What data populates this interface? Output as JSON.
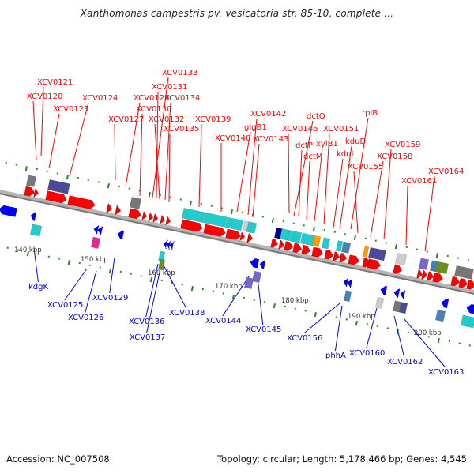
{
  "title": "Xanthomonas campestris pv. vesicatoria str. 85-10, complete ...",
  "footer": {
    "accession": "Accession: NC_007508",
    "summary": "Topology: circular; Length: 5,178,466 bp; Genes: 4,545"
  },
  "colors": {
    "forward_gene": "#ff0000",
    "reverse_gene": "#0000ff",
    "forward_label": "#ff0000",
    "reverse_label": "#0000ee",
    "backbone": "#8c8c8c",
    "tick": "#228b22",
    "cog_cyan": "#22cccc",
    "cog_gray": "#777777",
    "cog_slate": "#4a4a99",
    "cog_magenta": "#ee2299",
    "cog_olive": "#6b8e23",
    "cog_orange": "#ff9900",
    "cog_steel": "#4682b4",
    "cog_lightgray": "#cccccc",
    "cog_purple": "#7766cc",
    "cog_navy": "#000080"
  },
  "scale": {
    "tick_labels": [
      "140 kbp",
      "150 kbp",
      "160 kbp",
      "170 kbp",
      "180 kbp",
      "190 kbp",
      "200 kbp"
    ]
  },
  "forward_genes": [
    {
      "label": "XCV0121"
    },
    {
      "label": "XCV0120"
    },
    {
      "label": "XCV0123"
    },
    {
      "label": "XCV0124"
    },
    {
      "label": "XCV0127"
    },
    {
      "label": "XCV0128"
    },
    {
      "label": "XCV0130"
    },
    {
      "label": "XCV0133"
    },
    {
      "label": "XCV0131"
    },
    {
      "label": "XCV0132"
    },
    {
      "label": "XCV0134"
    },
    {
      "label": "XCV0135"
    },
    {
      "label": "XCV0139"
    },
    {
      "label": "XCV0140"
    },
    {
      "label": "glgB1"
    },
    {
      "label": "XCV0142"
    },
    {
      "label": "XCV0143"
    },
    {
      "label": "XCV0146"
    },
    {
      "label": "dctQ"
    },
    {
      "label": "dctP"
    },
    {
      "label": "dctM"
    },
    {
      "label": "xylB1"
    },
    {
      "label": "XCV0151"
    },
    {
      "label": "kduI"
    },
    {
      "label": "kduD"
    },
    {
      "label": "rpiB"
    },
    {
      "label": "XCV0155"
    },
    {
      "label": "XCV0158"
    },
    {
      "label": "XCV0159"
    },
    {
      "label": "XCV0161"
    },
    {
      "label": "XCV0164"
    }
  ],
  "reverse_genes": [
    {
      "label": "kdgK"
    },
    {
      "label": "XCV0125"
    },
    {
      "label": "XCV0126"
    },
    {
      "label": "XCV0129"
    },
    {
      "label": "XCV0136"
    },
    {
      "label": "XCV0137"
    },
    {
      "label": "XCV0138"
    },
    {
      "label": "XCV0144"
    },
    {
      "label": "XCV0145"
    },
    {
      "label": "XCV0156"
    },
    {
      "label": "phhA"
    },
    {
      "label": "XCV0160"
    },
    {
      "label": "XCV0162"
    },
    {
      "label": "XCV0163"
    }
  ]
}
